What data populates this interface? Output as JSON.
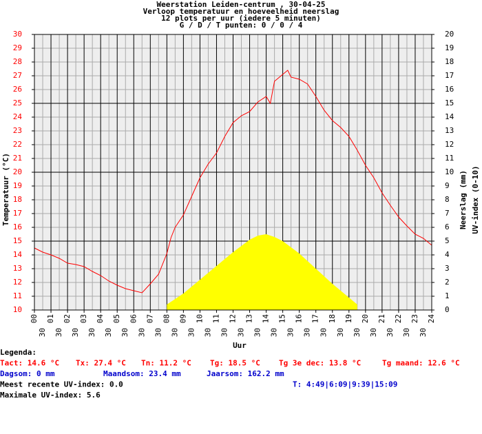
{
  "chart_data": {
    "type": "line",
    "title": [
      "Weerstation Leiden-centrum , 30-04-25",
      "Verloop temperatuur en hoeveelheid neerslag",
      "12 plots per uur (iedere 5 minuten)",
      "G / D / T punten: 0 / 0 / 4"
    ],
    "xlabel": "Uur",
    "ylabel": "Temperatuur (°C)",
    "y2label": [
      "Neerslag (mm)",
      "UV-index (0-10)"
    ],
    "xlim": [
      0,
      24
    ],
    "xticks": [
      {
        "value": 0,
        "label": "00"
      },
      {
        "value": 1,
        "label": "01"
      },
      {
        "value": 2,
        "label": "02"
      },
      {
        "value": 3,
        "label": "03"
      },
      {
        "value": 4,
        "label": "04"
      },
      {
        "value": 5,
        "label": "05"
      },
      {
        "value": 6,
        "label": "06"
      },
      {
        "value": 7,
        "label": "07"
      },
      {
        "value": 8,
        "label": "08"
      },
      {
        "value": 9,
        "label": "09"
      },
      10,
      11,
      12,
      13,
      14,
      15,
      16,
      17,
      18,
      19,
      20,
      21,
      22,
      23,
      24
    ],
    "xminorticks": [
      {
        "value": 0.5,
        "label": "30"
      },
      {
        "value": 1.5,
        "label": "30"
      },
      {
        "value": 2.5,
        "label": "30"
      },
      {
        "value": 3.5,
        "label": "30"
      },
      {
        "value": 4.5,
        "label": "30"
      },
      {
        "value": 5.5,
        "label": "30"
      },
      {
        "value": 6.5,
        "label": "30"
      },
      {
        "value": 7.5,
        "label": "30"
      },
      {
        "value": 8.5,
        "label": "30"
      },
      {
        "value": 9.5,
        "label": "30"
      },
      {
        "value": 10.5,
        "label": "30"
      },
      {
        "value": 11.5,
        "label": "30"
      },
      {
        "value": 12.5,
        "label": "30"
      },
      {
        "value": 13.5,
        "label": "30"
      },
      {
        "value": 14.5,
        "label": "30"
      },
      {
        "value": 15.5,
        "label": "30"
      },
      {
        "value": 16.5,
        "label": "30"
      },
      {
        "value": 17.5,
        "label": "30"
      },
      {
        "value": 18.5,
        "label": "30"
      },
      {
        "value": 19.5,
        "label": "30"
      },
      {
        "value": 20.5,
        "label": "30"
      },
      {
        "value": 21.5,
        "label": "30"
      },
      {
        "value": 22.5,
        "label": "30"
      },
      {
        "value": 23.5,
        "label": "30"
      }
    ],
    "ylim": [
      10,
      30
    ],
    "yticks": [
      10,
      11,
      12,
      13,
      14,
      15,
      16,
      17,
      18,
      19,
      20,
      21,
      22,
      23,
      24,
      25,
      26,
      27,
      28,
      29,
      30
    ],
    "y2lim": [
      0,
      20
    ],
    "y2ticks": [
      0,
      1,
      2,
      3,
      4,
      5,
      6,
      7,
      8,
      9,
      10,
      11,
      12,
      13,
      14,
      15,
      16,
      17,
      18,
      19,
      20
    ],
    "grid": true,
    "series": [
      {
        "color": "#ff0000",
        "x": [
          0,
          0.5,
          1,
          1.5,
          2,
          2.5,
          3,
          3.5,
          4,
          4.5,
          5,
          5.5,
          6,
          6.5,
          7,
          7.5,
          8,
          8.25,
          8.5,
          9,
          9.5,
          10,
          10.5,
          11,
          11.5,
          12,
          12.5,
          13,
          13.5,
          14,
          14.25,
          14.5,
          15,
          15.3,
          15.5,
          16,
          16.5,
          17,
          17.5,
          18,
          18.5,
          19,
          19.5,
          20,
          20.5,
          21,
          21.5,
          22,
          22.5,
          23,
          23.5,
          24
        ],
        "values": [
          14.5,
          14.2,
          14.0,
          13.75,
          13.4,
          13.3,
          13.15,
          12.8,
          12.5,
          12.1,
          11.8,
          11.55,
          11.4,
          11.25,
          11.9,
          12.6,
          14.1,
          15.25,
          16.0,
          16.9,
          18.25,
          19.6,
          20.6,
          21.4,
          22.6,
          23.6,
          24.1,
          24.4,
          25.1,
          25.5,
          25.0,
          26.6,
          27.1,
          27.4,
          26.9,
          26.75,
          26.4,
          25.5,
          24.5,
          23.75,
          23.25,
          22.6,
          21.6,
          20.5,
          19.6,
          18.5,
          17.6,
          16.75,
          16.1,
          15.5,
          15.2,
          14.7
        ]
      },
      {
        "color": "#ffff00",
        "axis": "y2",
        "style": "area",
        "x": [
          8,
          9,
          10,
          11,
          12,
          13,
          13.5,
          14,
          14.5,
          15,
          16,
          17,
          18,
          19,
          19.5
        ],
        "values": [
          0.4,
          1.2,
          2.2,
          3.2,
          4.2,
          5.1,
          5.4,
          5.5,
          5.3,
          5.0,
          4.1,
          3.0,
          1.9,
          0.9,
          0.4
        ]
      }
    ],
    "footer": [
      [
        {
          "text": "Legenda:",
          "color": "#000000"
        }
      ],
      [
        {
          "text": "Tact: 14.6 °C",
          "color": "#ff0000"
        },
        {
          "text": "Tx: 27.4 °C",
          "color": "#ff0000"
        },
        {
          "text": "Tn: 11.2 °C",
          "color": "#ff0000"
        },
        {
          "text": "Tg: 18.5 °C",
          "color": "#ff0000"
        },
        {
          "text": "Tg 3e dec: 13.8 °C",
          "color": "#ff0000"
        },
        {
          "text": "Tg maand: 12.6 °C",
          "color": "#ff0000"
        }
      ],
      [
        {
          "text": "Dagsom: 0 mm",
          "color": "#0000cc"
        },
        {
          "text": "Maandsom: 23.4 mm",
          "color": "#0000cc"
        },
        {
          "text": "Jaarsom: 162.2 mm",
          "color": "#0000cc"
        }
      ],
      [
        {
          "text": "Meest recente UV-index: 0.0",
          "color": "#000000"
        },
        {
          "text": "T: 4:49|6:09|9:39|15:09",
          "color": "#0000cc"
        }
      ],
      [
        {
          "text": "Maximale UV-index: 5.6",
          "color": "#000000"
        }
      ]
    ]
  }
}
